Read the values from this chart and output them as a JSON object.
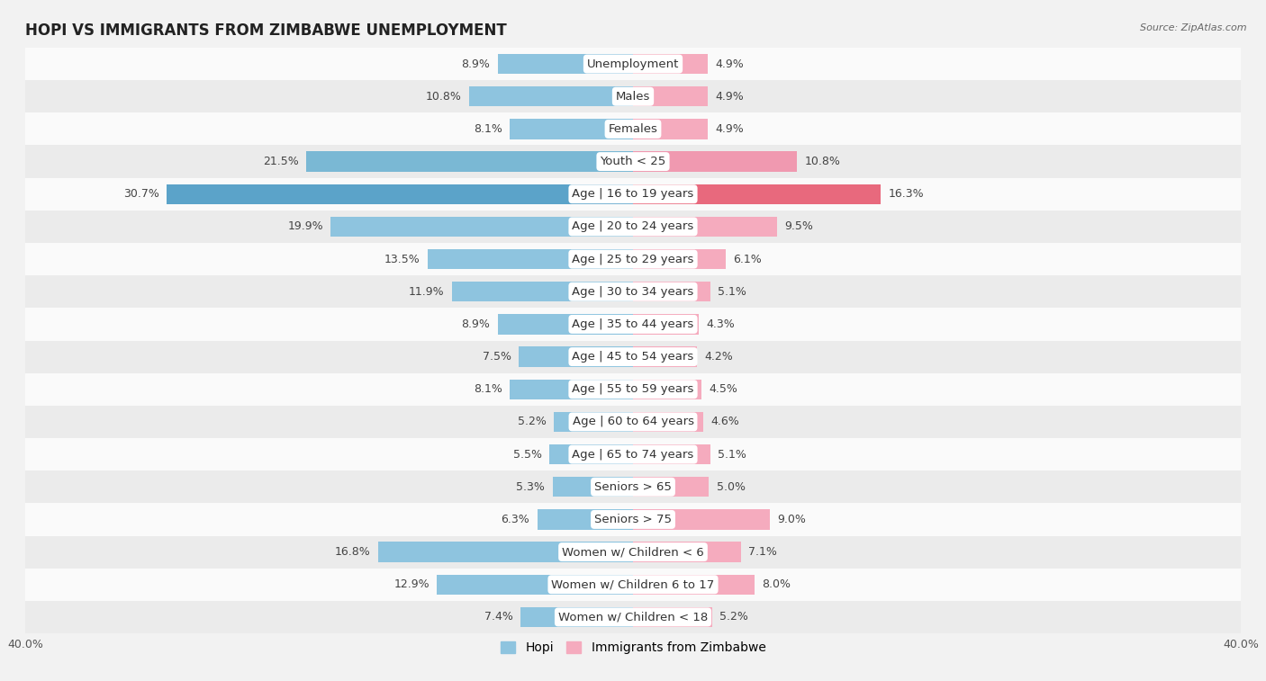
{
  "title": "HOPI VS IMMIGRANTS FROM ZIMBABWE UNEMPLOYMENT",
  "source": "Source: ZipAtlas.com",
  "categories": [
    "Unemployment",
    "Males",
    "Females",
    "Youth < 25",
    "Age | 16 to 19 years",
    "Age | 20 to 24 years",
    "Age | 25 to 29 years",
    "Age | 30 to 34 years",
    "Age | 35 to 44 years",
    "Age | 45 to 54 years",
    "Age | 55 to 59 years",
    "Age | 60 to 64 years",
    "Age | 65 to 74 years",
    "Seniors > 65",
    "Seniors > 75",
    "Women w/ Children < 6",
    "Women w/ Children 6 to 17",
    "Women w/ Children < 18"
  ],
  "hopi_values": [
    8.9,
    10.8,
    8.1,
    21.5,
    30.7,
    19.9,
    13.5,
    11.9,
    8.9,
    7.5,
    8.1,
    5.2,
    5.5,
    5.3,
    6.3,
    16.8,
    12.9,
    7.4
  ],
  "zimbabwe_values": [
    4.9,
    4.9,
    4.9,
    10.8,
    16.3,
    9.5,
    6.1,
    5.1,
    4.3,
    4.2,
    4.5,
    4.6,
    5.1,
    5.0,
    9.0,
    7.1,
    8.0,
    5.2
  ],
  "hopi_color": "#8ec4df",
  "zimbabwe_color": "#f5abbe",
  "hopi_highlight_color": "#5ba3c9",
  "zimbabwe_highlight_color": "#e8697d",
  "hopi_youth_color": "#7ab8d4",
  "zimbabwe_youth_color": "#f099b0",
  "axis_limit": 40.0,
  "background_color": "#f2f2f2",
  "row_bg_light": "#fafafa",
  "row_bg_dark": "#ebebeb",
  "label_fontsize": 9.5,
  "value_fontsize": 9,
  "title_fontsize": 12,
  "bar_height": 0.62
}
